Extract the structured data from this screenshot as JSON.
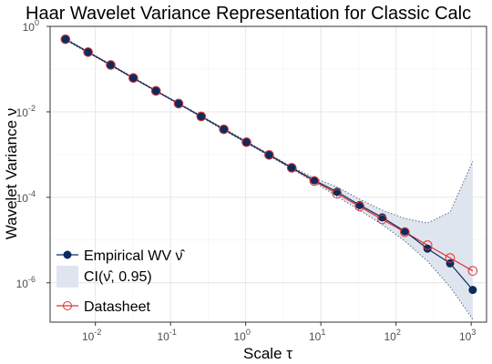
{
  "chart_data": {
    "type": "line",
    "title": "Haar Wavelet Variance Representation for Classic Calc",
    "xlabel": "Scale τ",
    "ylabel": "Wavelet Variance ν",
    "x_scale": "log10",
    "y_scale": "log10",
    "xlim": [
      0.0025,
      1600
    ],
    "ylim": [
      1.2e-07,
      1.0
    ],
    "x_ticks": [
      {
        "base": "10",
        "exp": "-2",
        "value": 0.01
      },
      {
        "base": "10",
        "exp": "-1",
        "value": 0.1
      },
      {
        "base": "10",
        "exp": "0",
        "value": 1
      },
      {
        "base": "10",
        "exp": "1",
        "value": 10
      },
      {
        "base": "10",
        "exp": "2",
        "value": 100
      },
      {
        "base": "10",
        "exp": "3",
        "value": 1000
      }
    ],
    "y_ticks": [
      {
        "base": "10",
        "exp": "-6",
        "value": 1e-06
      },
      {
        "base": "10",
        "exp": "-4",
        "value": 0.0001
      },
      {
        "base": "10",
        "exp": "-2",
        "value": 0.01
      },
      {
        "base": "10",
        "exp": "0",
        "value": 1
      }
    ],
    "grid": true,
    "legend_placement": "bottom-left",
    "x": [
      0.004,
      0.008,
      0.016,
      0.032,
      0.064,
      0.128,
      0.256,
      0.512,
      1.024,
      2.048,
      4.096,
      8.192,
      16.384,
      32.768,
      65.536,
      131.072,
      262.144,
      524.288,
      1048.576
    ],
    "series": [
      {
        "name": "Empirical WV ν̂",
        "color": "#0b2c5e",
        "marker": "filled-circle",
        "values": [
          0.5,
          0.25,
          0.125,
          0.062,
          0.031,
          0.0156,
          0.0078,
          0.0039,
          0.00195,
          0.00098,
          0.00049,
          0.00025,
          0.000135,
          6.6e-05,
          3.4e-05,
          1.6e-05,
          6.3e-06,
          2.85e-06,
          6.8e-07
        ]
      },
      {
        "name": "Datasheet",
        "color": "#e03030",
        "marker": "open-circle",
        "values": [
          0.5,
          0.25,
          0.125,
          0.062,
          0.031,
          0.0156,
          0.0078,
          0.0039,
          0.00195,
          0.00098,
          0.00049,
          0.00024,
          0.000122,
          6.1e-05,
          3.05e-05,
          1.53e-05,
          7.6e-06,
          3.8e-06,
          1.9e-06
        ]
      }
    ],
    "confidence_interval": {
      "name": "CI(ν̂, 0.95)",
      "color": "#dfe5ee",
      "lower": [
        0.48,
        0.24,
        0.12,
        0.06,
        0.03,
        0.0151,
        0.0075,
        0.0037,
        0.00185,
        0.00093,
        0.00046,
        0.000225,
        0.000105,
        5e-05,
        2.3e-05,
        9.5e-06,
        3.2e-06,
        8e-07,
        1.4e-07
      ],
      "upper": [
        0.52,
        0.26,
        0.13,
        0.064,
        0.032,
        0.0161,
        0.0081,
        0.0041,
        0.00205,
        0.00103,
        0.00052,
        0.00028,
        0.000175,
        9e-05,
        5e-05,
        3.2e-05,
        2.5e-05,
        4.5e-05,
        0.0007
      ]
    }
  },
  "legend": {
    "empirical_label": "Empirical WV ν̂",
    "ci_label": "CI(ν̂, 0.95)",
    "datasheet_label": "Datasheet"
  }
}
